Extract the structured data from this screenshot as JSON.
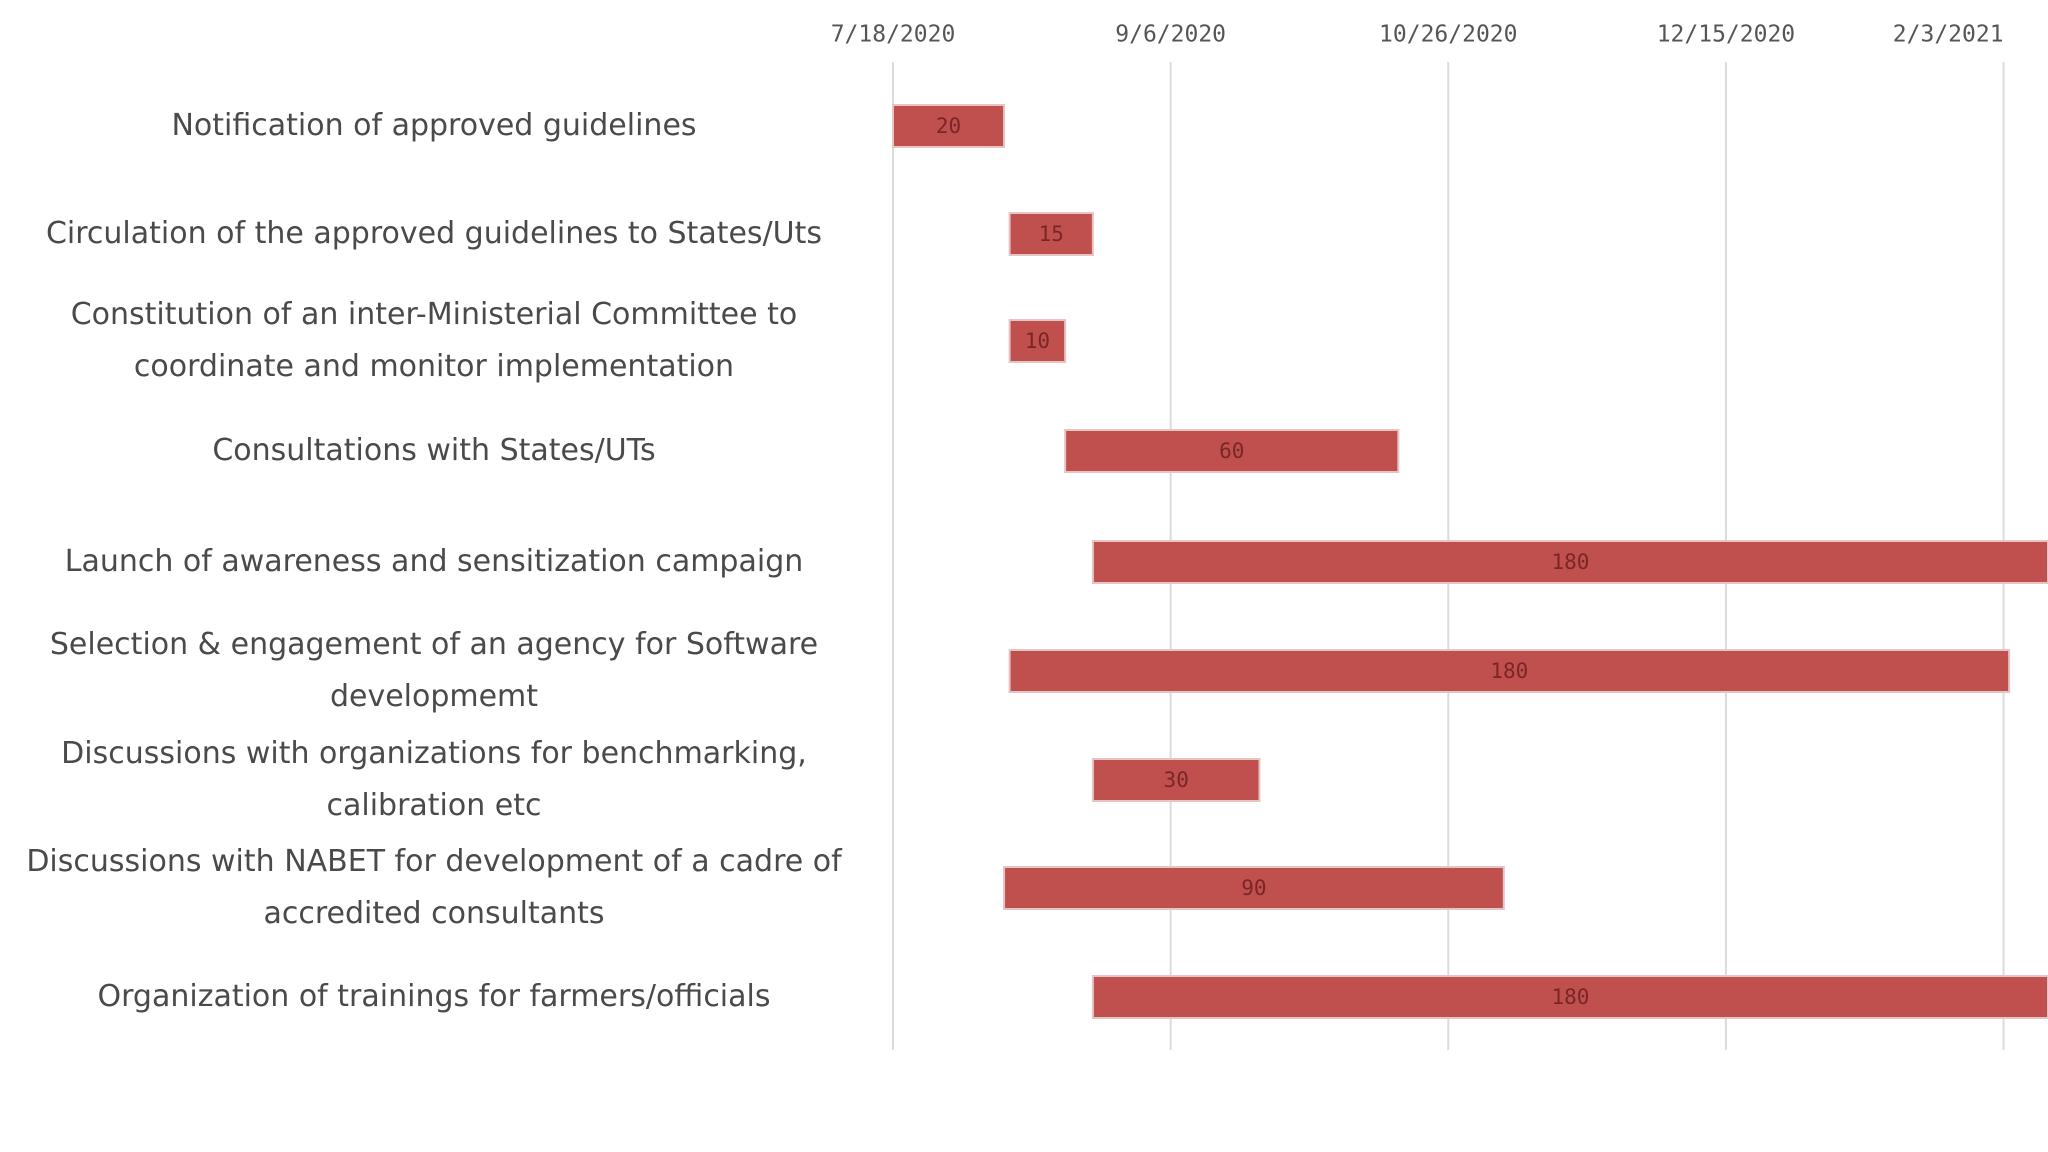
{
  "chart_data": {
    "type": "bar",
    "orientation": "horizontal",
    "x_axis_type": "date",
    "x_axis_position": "top",
    "title": "",
    "xlabel": "",
    "ylabel": "",
    "grid": true,
    "bar_color": "#c0504d",
    "grid_color": "#dcdcdc",
    "xlim": [
      "2020-07-18",
      "2021-02-11"
    ],
    "x_ticks": [
      "7/18/2020",
      "9/6/2020",
      "10/26/2020",
      "12/15/2020",
      "2/3/2021"
    ],
    "tasks": [
      {
        "label": "Notification of approved guidelines",
        "start": "2020-07-18",
        "end": "2020-08-07",
        "duration": 20
      },
      {
        "label": "Circulation of the approved guidelines to  States/Uts",
        "start": "2020-08-08",
        "end": "2020-08-23",
        "duration": 15
      },
      {
        "label": "Constitution of an inter-Ministerial Committee to coordinate and monitor implementation",
        "start": "2020-08-08",
        "end": "2020-08-18",
        "duration": 10
      },
      {
        "label": "Consultations with States/UTs",
        "start": "2020-08-18",
        "end": "2020-10-17",
        "duration": 60
      },
      {
        "label": "Launch of awareness and sensitization campaign",
        "start": "2020-08-23",
        "end": "2021-02-19",
        "duration": 180
      },
      {
        "label": "Selection & engagement of an agency for Software developmemt",
        "start": "2020-08-08",
        "end": "2021-02-04",
        "duration": 180
      },
      {
        "label": "Discussions with organizations  for benchmarking, calibration etc",
        "start": "2020-08-23",
        "end": "2020-09-22",
        "duration": 30
      },
      {
        "label": "Discussions with NABET for development of a cadre of accredited consultants",
        "start": "2020-08-07",
        "end": "2020-11-05",
        "duration": 90
      },
      {
        "label": "Organization of trainings for farmers/officials",
        "start": "2020-08-23",
        "end": "2021-02-19",
        "duration": 180
      }
    ]
  }
}
